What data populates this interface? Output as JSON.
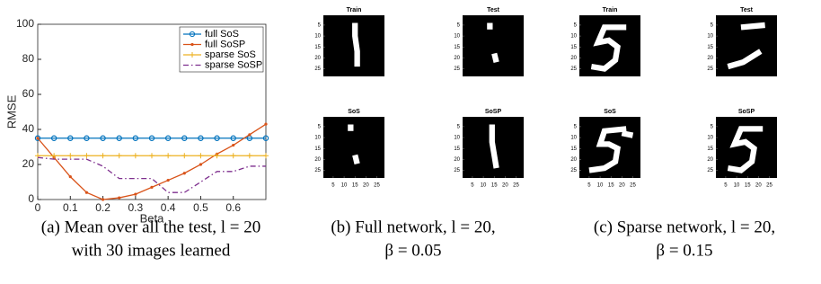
{
  "chart_data": {
    "type": "line",
    "xlabel": "Beta",
    "ylabel": "RMSE",
    "x": [
      0,
      0.05,
      0.1,
      0.15,
      0.2,
      0.25,
      0.3,
      0.35,
      0.4,
      0.45,
      0.5,
      0.55,
      0.6,
      0.65,
      0.7
    ],
    "xlim": [
      0,
      0.7
    ],
    "xticks": [
      0,
      0.1,
      0.2,
      0.3,
      0.4,
      0.5,
      0.6
    ],
    "ylim": [
      0,
      100
    ],
    "yticks": [
      0,
      20,
      40,
      60,
      80,
      100
    ],
    "legend": "upper right",
    "series": [
      {
        "name": "full SoS",
        "color": "#0072bd",
        "marker": "o",
        "linestyle": "-",
        "values": [
          35,
          35,
          35,
          35,
          35,
          35,
          35,
          35,
          35,
          35,
          35,
          35,
          35,
          35,
          35
        ]
      },
      {
        "name": "full SoSP",
        "color": "#d95319",
        "marker": ".",
        "linestyle": "-",
        "values": [
          35,
          24,
          13,
          4,
          0,
          1,
          3,
          7,
          11,
          15,
          20,
          26,
          31,
          37,
          43
        ]
      },
      {
        "name": "sparse SoS",
        "color": "#edb120",
        "marker": "+",
        "linestyle": "-",
        "values": [
          25,
          25,
          25,
          25,
          25,
          25,
          25,
          25,
          25,
          25,
          25,
          25,
          25,
          25,
          25
        ]
      },
      {
        "name": "sparse SoSP",
        "color": "#7e2f8e",
        "linestyle": "-.",
        "values": [
          24,
          23,
          23,
          23,
          19,
          12,
          12,
          12,
          4,
          4,
          10,
          16,
          16,
          19,
          19
        ]
      }
    ]
  },
  "panels": [
    {
      "subplots": [
        {
          "title": "Train"
        },
        {
          "title": "Test"
        },
        {
          "title": "SoS"
        },
        {
          "title": "SoSP"
        }
      ],
      "ticks": [
        5,
        10,
        15,
        20,
        25
      ]
    },
    {
      "subplots": [
        {
          "title": "Train"
        },
        {
          "title": "Test"
        },
        {
          "title": "SoS"
        },
        {
          "title": "SoSP"
        }
      ],
      "ticks": [
        5,
        10,
        15,
        20,
        25
      ]
    }
  ],
  "captions": [
    [
      "(a) Mean over all the test, l = 20",
      "with 30 images learned"
    ],
    [
      "(b) Full network, l = 20,",
      "β = 0.05"
    ],
    [
      "(c) Sparse network, l = 20,",
      "β = 0.15"
    ]
  ]
}
